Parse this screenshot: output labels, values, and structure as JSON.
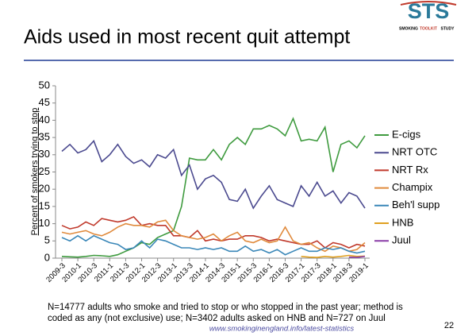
{
  "slide": {
    "title": "Aids used in most recent quit attempt",
    "logo": "STS",
    "logo_words": [
      "SMOKING",
      "TOOLKIT",
      "STUDY"
    ],
    "footnote": [
      "N=14777 adults who smoke and tried to stop or who stopped in the past year; method is",
      "coded as any (not exclusive) use; N=3402 adults asked on HNB and N=727 on Juul"
    ],
    "url": "www.smokinginengland.info/latest-statistics",
    "page_number": "22"
  },
  "chart_data": {
    "type": "line",
    "y_label": "Percent of smokers trying to stop",
    "categories": [
      "2009-3",
      null,
      "2010-1",
      null,
      "2010-3",
      null,
      "2011-1",
      null,
      "2011-3",
      null,
      "2012-1",
      null,
      "2012-3",
      null,
      "2013-1",
      null,
      "2013-3",
      null,
      "2014-1",
      null,
      "2014-3",
      null,
      "2015-1",
      null,
      "2015-3",
      null,
      "2016-1",
      null,
      "2016-3",
      null,
      "2017-1",
      null,
      "2017-3",
      null,
      "2018-1",
      null,
      "2018-3",
      null,
      "2019-1"
    ],
    "series": [
      {
        "name": "E-cigs",
        "color": "#3f9b3f",
        "values": [
          0.5,
          0.4,
          0.3,
          0.5,
          0.8,
          0.7,
          0.5,
          1,
          2,
          3,
          4.5,
          4,
          6,
          7,
          8,
          15,
          29,
          28.5,
          28.5,
          31.5,
          28.5,
          33,
          35,
          33,
          37.5,
          37.5,
          38.5,
          37.5,
          35.5,
          40.5,
          34,
          34.5,
          34,
          38,
          25,
          33,
          34,
          32,
          35.5
        ]
      },
      {
        "name": "NRT OTC",
        "color": "#4b4a8f",
        "values": [
          31,
          33,
          30.5,
          31.5,
          34,
          28,
          30,
          33,
          29.5,
          27.5,
          28.5,
          26.5,
          30,
          29,
          31.5,
          24,
          27,
          20,
          23,
          24,
          22,
          17,
          16.5,
          20,
          14.5,
          18,
          21,
          17,
          16,
          15,
          21,
          18,
          22,
          18,
          19.5,
          16,
          19,
          18,
          14.5
        ]
      },
      {
        "name": "NRT Rx",
        "color": "#c0392b",
        "values": [
          9.5,
          8.5,
          9,
          10.5,
          9.5,
          11.5,
          11,
          10.5,
          11,
          12,
          9.5,
          10,
          9.5,
          9.5,
          6.5,
          6.5,
          6,
          8,
          5,
          5.5,
          5,
          5.5,
          5.5,
          6.5,
          6.5,
          6,
          5,
          5.5,
          5,
          4.5,
          4,
          4,
          5,
          3,
          4.5,
          4,
          3,
          4,
          3.5
        ]
      },
      {
        "name": "Champix",
        "color": "#e08a3c",
        "values": [
          7.5,
          7,
          7.5,
          8,
          7,
          6.5,
          7.5,
          9,
          10,
          9.5,
          9.5,
          9,
          10.5,
          11,
          8,
          6.5,
          6,
          5.5,
          6,
          7,
          5,
          6.5,
          7.5,
          5,
          4.5,
          5.5,
          4.5,
          5,
          9,
          5,
          4,
          4.5,
          3,
          2,
          3.5,
          3,
          2,
          2.5,
          4.5
        ]
      },
      {
        "name": "Beh'l supp",
        "color": "#3a87b8",
        "values": [
          6,
          5,
          6.5,
          5,
          6.5,
          5.5,
          4.5,
          4,
          2.5,
          3,
          5,
          3,
          5.5,
          5,
          4,
          3,
          3,
          2.5,
          3,
          2.5,
          3,
          2,
          2,
          3.5,
          2,
          2.5,
          1.5,
          2.5,
          1,
          2,
          3,
          2,
          2,
          3,
          2.5,
          3,
          2,
          1.5,
          2
        ]
      },
      {
        "name": "HNB",
        "color": "#e0a020",
        "values": [
          null,
          null,
          null,
          null,
          null,
          null,
          null,
          null,
          null,
          null,
          null,
          null,
          null,
          null,
          null,
          null,
          null,
          null,
          null,
          null,
          null,
          null,
          null,
          null,
          null,
          null,
          null,
          null,
          null,
          null,
          0.5,
          0.3,
          0.2,
          0.5,
          0.3,
          0.5,
          0.8,
          0.5,
          0.6
        ]
      },
      {
        "name": "Juul",
        "color": "#8b3fa8",
        "values": [
          null,
          null,
          null,
          null,
          null,
          null,
          null,
          null,
          null,
          null,
          null,
          null,
          null,
          null,
          null,
          null,
          null,
          null,
          null,
          null,
          null,
          null,
          null,
          null,
          null,
          null,
          null,
          null,
          null,
          null,
          null,
          null,
          null,
          null,
          null,
          null,
          0.3,
          0.2,
          0.5
        ]
      }
    ],
    "ylim": [
      0,
      50
    ],
    "yticks": [
      0,
      5,
      10,
      15,
      20,
      25,
      30,
      35,
      40,
      45,
      50
    ],
    "grid": false,
    "legend": "right"
  }
}
